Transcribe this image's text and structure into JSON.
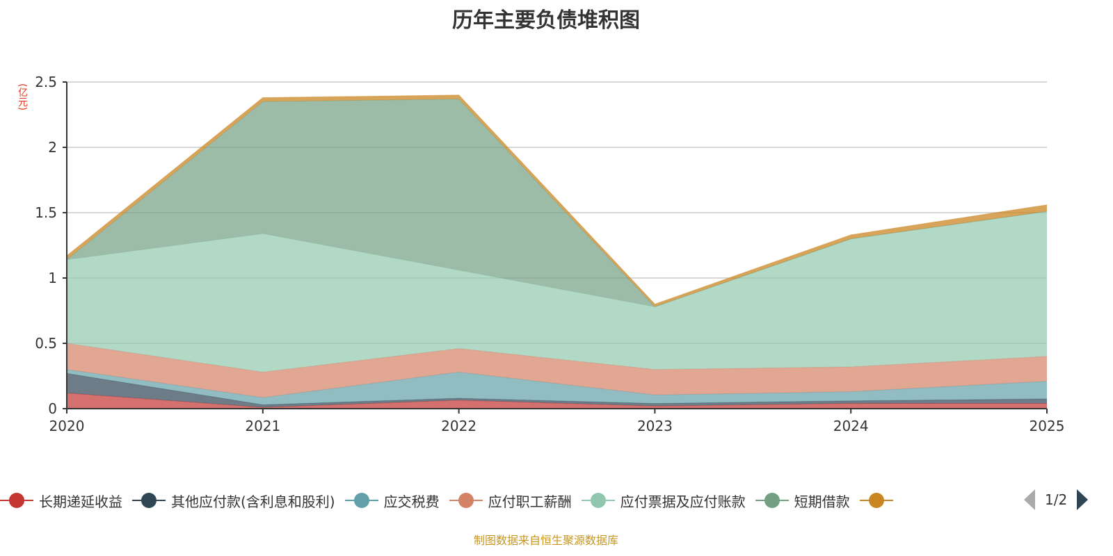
{
  "chart_data": {
    "type": "area",
    "stacked": true,
    "title": "历年主要负债堆积图",
    "ylabel": "(亿元)",
    "xlabel": "",
    "categories": [
      "2020",
      "2021",
      "2022",
      "2023",
      "2024",
      "2025"
    ],
    "ylim": [
      0,
      2.5
    ],
    "yticks": [
      "0",
      "0.5",
      "1",
      "1.5",
      "2",
      "2.5"
    ],
    "grid": true,
    "legend_position": "bottom",
    "series": [
      {
        "name": "长期递延收益",
        "color": "#c23531",
        "values": [
          0.12,
          0.01,
          0.065,
          0.02,
          0.04,
          0.04
        ]
      },
      {
        "name": "其他应付款(含利息和股利)",
        "color": "#2f4554",
        "values": [
          0.15,
          0.02,
          0.015,
          0.02,
          0.02,
          0.035
        ]
      },
      {
        "name": "应交税费",
        "color": "#61a0a8",
        "values": [
          0.03,
          0.055,
          0.2,
          0.065,
          0.07,
          0.135
        ]
      },
      {
        "name": "应付职工薪酬",
        "color": "#d48265",
        "values": [
          0.2,
          0.195,
          0.18,
          0.195,
          0.19,
          0.19
        ]
      },
      {
        "name": "应付票据及应付账款",
        "color": "#91c7ae",
        "values": [
          0.64,
          1.06,
          0.6,
          0.48,
          0.98,
          1.11
        ]
      },
      {
        "name": "短期借款",
        "color": "#749f83",
        "values": [
          0,
          1.01,
          1.31,
          0,
          0,
          0
        ]
      },
      {
        "name": null,
        "color": "#ca8622",
        "values": [
          0.03,
          0.03,
          0.03,
          0.02,
          0.03,
          0.05
        ]
      }
    ]
  },
  "legend": {
    "page": "1/2"
  },
  "source": "制图数据来自恒生聚源数据库"
}
